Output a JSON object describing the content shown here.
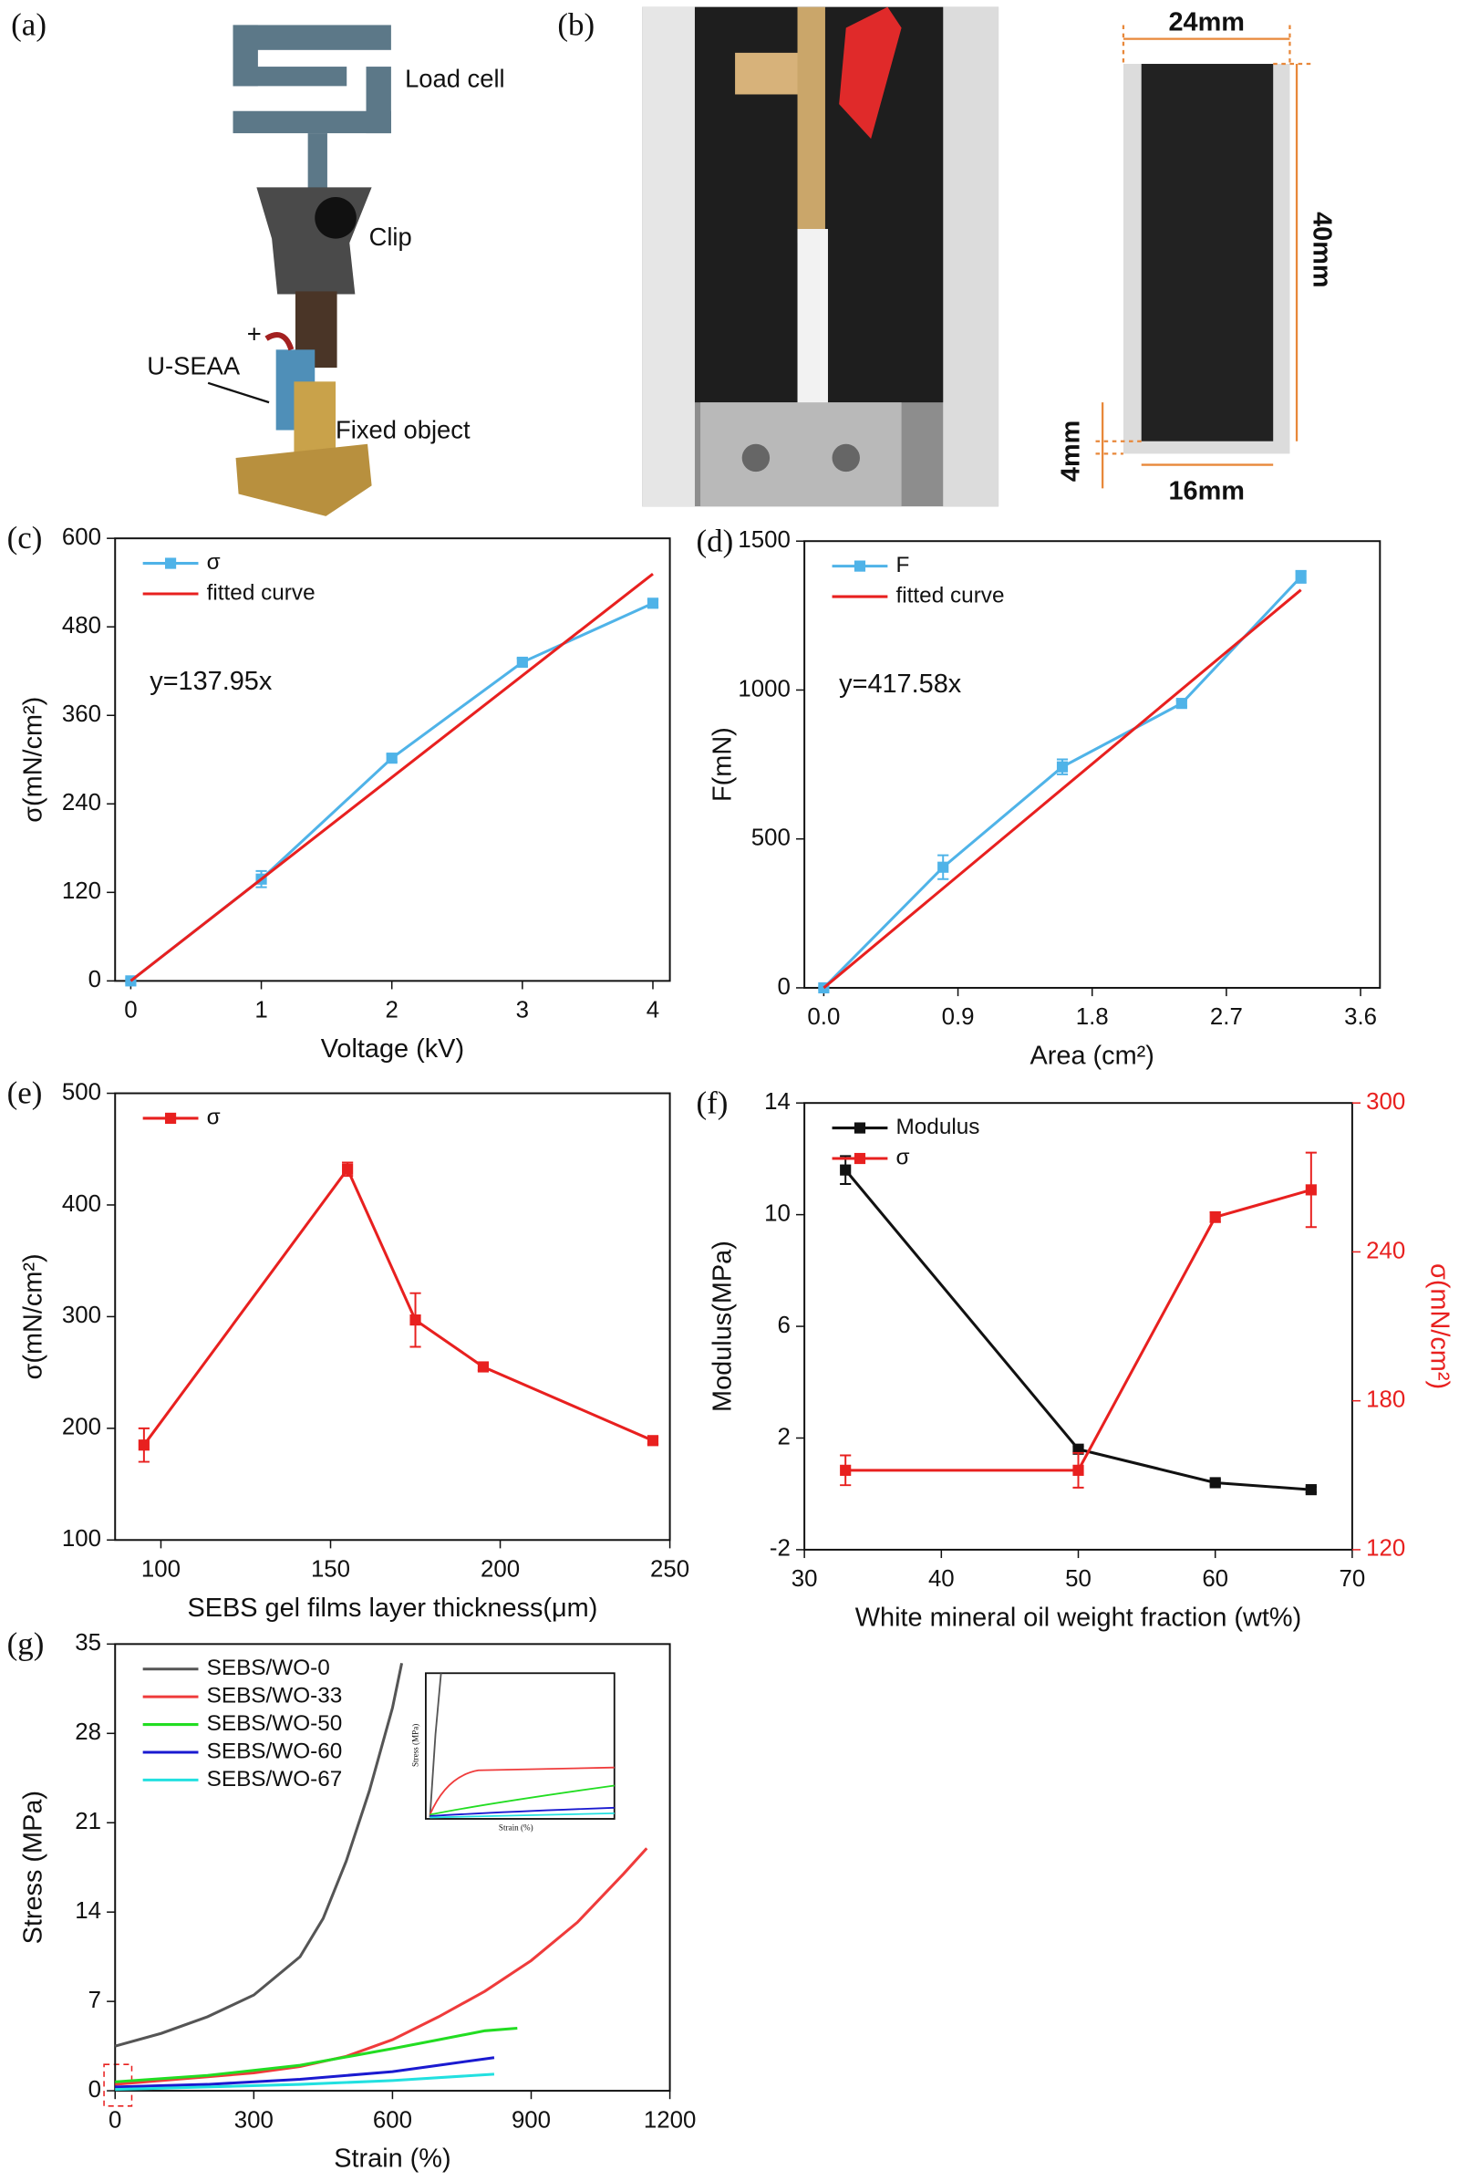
{
  "figure": {
    "a": {
      "panel": "(a)",
      "load_cell": "Load cell",
      "clip": "Clip",
      "sample": "U-SEAA",
      "fixed": "Fixed object",
      "sign": "+"
    },
    "b": {
      "panel": "(b)",
      "width": "24mm",
      "height": "40mm",
      "margin": "4mm",
      "inner": "16mm"
    }
  },
  "chart_data": [
    {
      "type": "line",
      "panel": "(c)",
      "xlabel": "Voltage (kV)",
      "ylabel": "σ(mN/cm²)",
      "xlim": [
        -0.12,
        4.13
      ],
      "xticks": [
        0,
        1,
        2,
        3,
        4
      ],
      "ylim": [
        0,
        600
      ],
      "yticks": [
        0,
        120,
        240,
        360,
        480,
        600
      ],
      "legend": "upper left",
      "annotation": "y=137.95x",
      "series": [
        {
          "name": "σ",
          "color": "#4fb3e8",
          "marker": "square",
          "x": [
            0,
            1,
            2,
            3,
            4
          ],
          "values": [
            0,
            138,
            302,
            432,
            512
          ],
          "errors": [
            3,
            11,
            5,
            5,
            5
          ]
        },
        {
          "name": "fitted curve",
          "color": "#e8201f",
          "x": [
            0,
            4
          ],
          "values": [
            0,
            551.8
          ]
        }
      ]
    },
    {
      "type": "line",
      "panel": "(d)",
      "xlabel": "Area (cm²)",
      "ylabel": "F(mN)",
      "xlim": [
        -0.13,
        3.73
      ],
      "xticks": [
        {
          "value": 0,
          "label": "0.0"
        },
        0.9,
        1.8,
        2.7,
        3.6
      ],
      "ylim": [
        0,
        1500
      ],
      "yticks": [
        0,
        500,
        1000,
        1500
      ],
      "legend": "upper left",
      "annotation": "y=417.58x",
      "series": [
        {
          "name": "F",
          "color": "#4fb3e8",
          "marker": "square",
          "x": [
            0,
            0.8,
            1.6,
            2.4,
            3.2
          ],
          "values": [
            0,
            405,
            742,
            955,
            1380
          ],
          "errors": [
            5,
            40,
            25,
            10,
            20
          ]
        },
        {
          "name": "fitted curve",
          "color": "#e8201f",
          "x": [
            0,
            3.2
          ],
          "values": [
            0,
            1336.3
          ]
        }
      ]
    },
    {
      "type": "line",
      "panel": "(e)",
      "xlabel": "SEBS gel films layer thickness(μm)",
      "ylabel": "σ(mN/cm²)",
      "xlim": [
        86.5,
        250
      ],
      "xticks": [
        100,
        150,
        200,
        250
      ],
      "ylim": [
        100,
        500
      ],
      "yticks": [
        100,
        200,
        300,
        400,
        500
      ],
      "legend": "upper left",
      "series": [
        {
          "name": "σ",
          "color": "#e8201f",
          "marker": "square",
          "x": [
            95,
            155,
            175,
            195,
            245
          ],
          "values": [
            185,
            432,
            297,
            255,
            189
          ],
          "errors": [
            15,
            6,
            24,
            3,
            3
          ]
        }
      ]
    },
    {
      "type": "line",
      "panel": "(f)",
      "xlabel": "White mineral oil weight fraction (wt%)",
      "ylabel": "Modulus(MPa)",
      "y2label": "σ(mN/cm²)",
      "xlim": [
        30,
        70
      ],
      "xticks": [
        30,
        40,
        50,
        60,
        70
      ],
      "ylim": [
        -2,
        14
      ],
      "yticks": [
        -2,
        2,
        6,
        10,
        14
      ],
      "y2lim": [
        120,
        300
      ],
      "y2ticks": [
        120,
        180,
        240,
        300
      ],
      "legend": "upper left",
      "series": [
        {
          "name": "Modulus",
          "color": "#111111",
          "marker": "square",
          "x": [
            33,
            50,
            60,
            67
          ],
          "values": [
            11.6,
            1.6,
            0.4,
            0.15
          ],
          "errors": [
            0.5,
            0.1,
            0.1,
            0.1
          ]
        },
        {
          "name": "σ",
          "color": "#e8201f",
          "marker": "square",
          "axis": "y2",
          "x": [
            33,
            50,
            60,
            67
          ],
          "values": [
            152,
            152,
            254,
            265
          ],
          "errors": [
            6,
            7,
            2,
            15
          ]
        }
      ]
    },
    {
      "type": "line",
      "panel": "(g)",
      "xlabel": "Strain (%)",
      "ylabel": "Stress (MPa)",
      "xlim": [
        0,
        1200
      ],
      "xticks": [
        0,
        300,
        600,
        900,
        1200
      ],
      "ylim": [
        0,
        35
      ],
      "yticks": [
        0,
        7,
        14,
        21,
        28,
        35
      ],
      "legend": "upper left",
      "inset": {
        "xlabel": "Strain (%)",
        "ylabel": "Stress (MPa)"
      },
      "series": [
        {
          "name": "SEBS/WO-0",
          "color": "#555555",
          "x": [
            0,
            100,
            200,
            300,
            400,
            450,
            500,
            550,
            600,
            620
          ],
          "values": [
            3.5,
            4.5,
            5.8,
            7.5,
            10.5,
            13.5,
            18,
            23.5,
            30,
            33.5
          ]
        },
        {
          "name": "SEBS/WO-33",
          "color": "#ef3b3b",
          "x": [
            0,
            100,
            200,
            300,
            400,
            500,
            600,
            700,
            800,
            900,
            1000,
            1100,
            1150
          ],
          "values": [
            0.5,
            0.8,
            1.1,
            1.4,
            1.9,
            2.7,
            4.0,
            5.8,
            7.8,
            10.2,
            13.2,
            17,
            19
          ]
        },
        {
          "name": "SEBS/WO-50",
          "color": "#22dd22",
          "x": [
            0,
            200,
            400,
            600,
            700,
            800,
            870
          ],
          "values": [
            0.7,
            1.2,
            2.0,
            3.3,
            4.0,
            4.7,
            4.9
          ]
        },
        {
          "name": "SEBS/WO-60",
          "color": "#1a1ad0",
          "x": [
            0,
            200,
            400,
            600,
            700,
            820
          ],
          "values": [
            0.3,
            0.5,
            0.9,
            1.5,
            2.0,
            2.6
          ]
        },
        {
          "name": "SEBS/WO-67",
          "color": "#22e0e0",
          "x": [
            0,
            200,
            400,
            600,
            820
          ],
          "values": [
            0.1,
            0.3,
            0.5,
            0.8,
            1.3
          ]
        }
      ]
    }
  ]
}
